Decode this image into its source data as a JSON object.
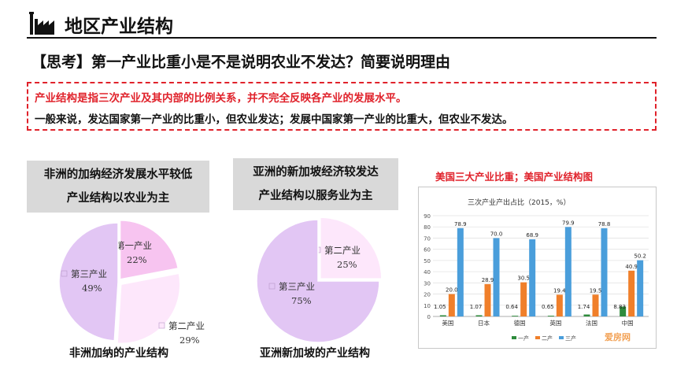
{
  "header": {
    "title": "地区产业结构"
  },
  "question": "【思考】第一产业比重小是不是说明农业不发达？简要说明理由",
  "answer": {
    "line1": "产业结构是指三次产业及其内部的比例关系，并不完全反映各产业的发展水平。",
    "line2": "一般来说，发达国家第一产业的比重小，但农业发达；发展中国家第一产业的比重大，但农业不发达。"
  },
  "ghana": {
    "box_line1": "非洲的加纳经济发展水平较低",
    "box_line2": "产业结构以农业为主",
    "caption": "非洲加纳的产业结构"
  },
  "singapore": {
    "box_line1": "亚洲的新加坡经济较发达",
    "box_line2": "产业结构以服务业为主",
    "caption": "亚洲新加坡的产业结构"
  },
  "usa_title": "美国三大产业比重；美国产业结构图",
  "watermark": "爱房网",
  "colors": {
    "red": "#e0222b",
    "pie_primary": "#f7c4f0",
    "pie_secondary": "#fde7fb",
    "pie_tertiary": "#e2c6f4",
    "bar_primary": "#2e8b3c",
    "bar_secondary": "#f07f2a",
    "bar_tertiary": "#4a9edb"
  },
  "chart_data": [
    {
      "type": "pie",
      "id": "ghana",
      "labels": [
        "第一产业",
        "第二产业",
        "第三产业"
      ],
      "values": [
        22,
        29,
        49
      ],
      "display": [
        "22%",
        "29%",
        "49%"
      ]
    },
    {
      "type": "pie",
      "id": "singapore",
      "labels": [
        "第二产业",
        "第三产业"
      ],
      "values": [
        25,
        75
      ],
      "display": [
        "25%",
        "75%"
      ]
    },
    {
      "type": "bar",
      "id": "countries",
      "title": "三次产业产出占比（2015，%）",
      "categories": [
        "美国",
        "日本",
        "德国",
        "英国",
        "法国",
        "中国"
      ],
      "series": [
        {
          "name": "一产",
          "values": [
            1.05,
            1.07,
            0.64,
            0.65,
            1.74,
            8.83
          ]
        },
        {
          "name": "二产",
          "values": [
            20.0,
            28.9,
            30.5,
            19.4,
            19.5,
            40.9
          ]
        },
        {
          "name": "三产",
          "values": [
            78.9,
            70.0,
            68.9,
            79.9,
            78.8,
            50.2
          ]
        }
      ],
      "value_labels": [
        [
          "1.05",
          "1.07",
          "0.64",
          "0.65",
          "1.74",
          "8.83"
        ],
        [
          "20.0",
          "28.9",
          "30.5",
          "19.4",
          "19.5",
          "40.9"
        ],
        [
          "78.9",
          "70.0",
          "68.9",
          "79.9",
          "78.8",
          "50.2"
        ]
      ],
      "yticks": [
        0,
        10,
        20,
        30,
        40,
        50,
        60,
        70,
        80,
        90
      ],
      "ylim": [
        0,
        90
      ],
      "grid": true,
      "legend": "bottom"
    }
  ]
}
